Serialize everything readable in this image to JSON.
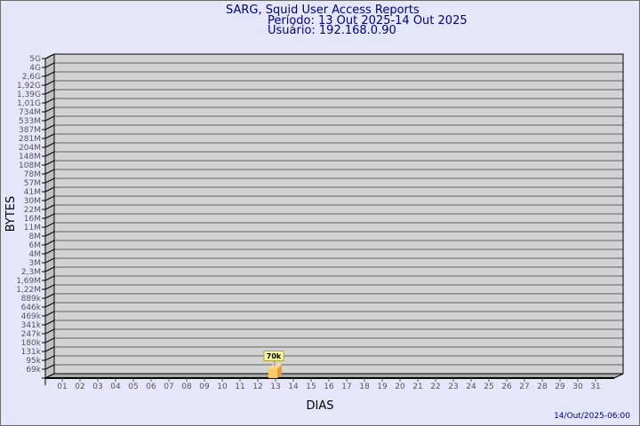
{
  "header": {
    "title": "SARG, Squid User Access Reports",
    "period": "Período: 13 Out 2025-14 Out 2025",
    "user": "Usuário: 192.168.0.90"
  },
  "footer": {
    "timestamp": "14/Out/2025-06:00"
  },
  "colors": {
    "background": "#e6e6fa",
    "plot": "#d3d3d3",
    "bar": "#ffc860",
    "title": "#000080",
    "label_box": "#ffff99"
  },
  "chart_data": {
    "type": "bar",
    "title": "SARG, Squid User Access Reports",
    "xlabel": "DIAS",
    "ylabel": "BYTES",
    "y_scale": "log",
    "grid": true,
    "y_ticks": [
      "5G",
      "4G",
      "2,6G",
      "1,92G",
      "1,39G",
      "1,01G",
      "734M",
      "533M",
      "387M",
      "281M",
      "204M",
      "148M",
      "108M",
      "78M",
      "57M",
      "41M",
      "30M",
      "22M",
      "16M",
      "11M",
      "8M",
      "6M",
      "4M",
      "3M",
      "2,3M",
      "1,69M",
      "1,22M",
      "889k",
      "646k",
      "469k",
      "341k",
      "247k",
      "180k",
      "131k",
      "95k",
      "69k"
    ],
    "categories": [
      "01",
      "02",
      "03",
      "04",
      "05",
      "06",
      "07",
      "08",
      "09",
      "10",
      "11",
      "12",
      "13",
      "14",
      "15",
      "16",
      "17",
      "18",
      "19",
      "20",
      "21",
      "22",
      "23",
      "24",
      "25",
      "26",
      "27",
      "28",
      "29",
      "30",
      "31"
    ],
    "values": [
      null,
      null,
      null,
      null,
      null,
      null,
      null,
      null,
      null,
      null,
      null,
      null,
      70000,
      null,
      null,
      null,
      null,
      null,
      null,
      null,
      null,
      null,
      null,
      null,
      null,
      null,
      null,
      null,
      null,
      null,
      null
    ],
    "data_labels": {
      "13": "70k"
    }
  }
}
